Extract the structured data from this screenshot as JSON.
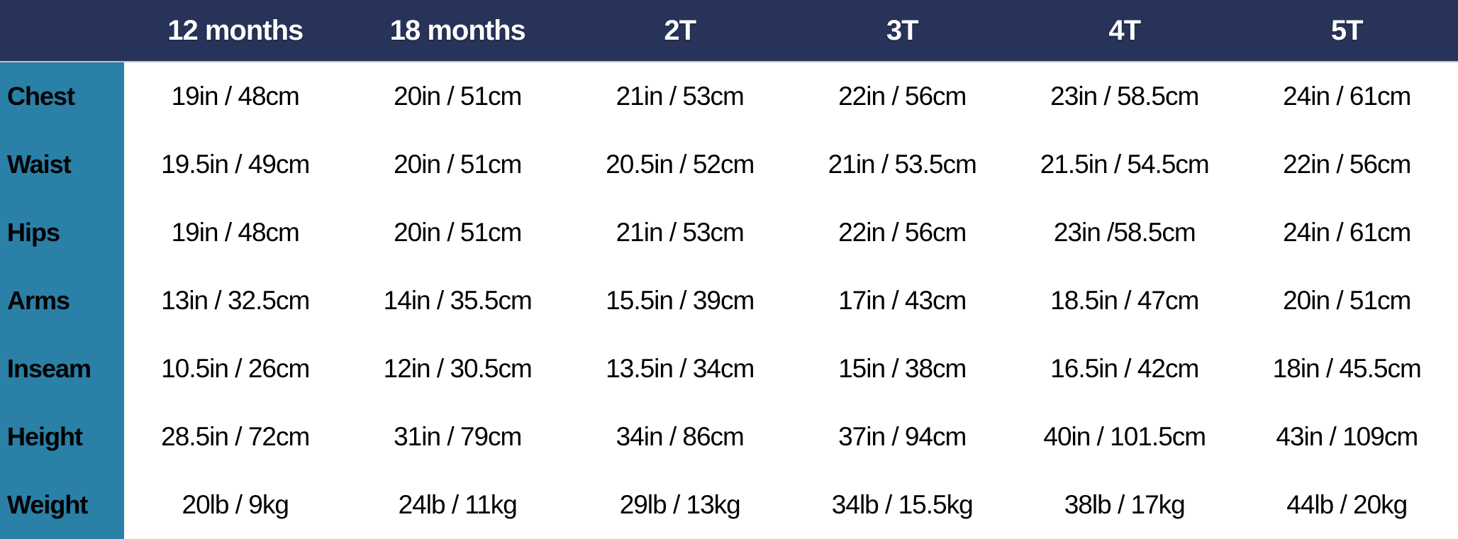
{
  "chart_data": {
    "type": "table",
    "columns": [
      "12 months",
      "18 months",
      "2T",
      "3T",
      "4T",
      "5T"
    ],
    "rows": [
      {
        "label": "Chest",
        "values": [
          "19in / 48cm",
          "20in / 51cm",
          "21in / 53cm",
          "22in / 56cm",
          "23in / 58.5cm",
          "24in / 61cm"
        ]
      },
      {
        "label": "Waist",
        "values": [
          "19.5in / 49cm",
          "20in / 51cm",
          "20.5in / 52cm",
          "21in / 53.5cm",
          "21.5in / 54.5cm",
          "22in / 56cm"
        ]
      },
      {
        "label": "Hips",
        "values": [
          "19in / 48cm",
          "20in / 51cm",
          "21in / 53cm",
          "22in / 56cm",
          "23in /58.5cm",
          "24in / 61cm"
        ]
      },
      {
        "label": "Arms",
        "values": [
          "13in / 32.5cm",
          "14in / 35.5cm",
          "15.5in / 39cm",
          "17in / 43cm",
          "18.5in / 47cm",
          "20in / 51cm"
        ]
      },
      {
        "label": "Inseam",
        "values": [
          "10.5in / 26cm",
          "12in / 30.5cm",
          "13.5in / 34cm",
          "15in / 38cm",
          "16.5in / 42cm",
          "18in / 45.5cm"
        ]
      },
      {
        "label": "Height",
        "values": [
          "28.5in / 72cm",
          "31in / 79cm",
          "34in / 86cm",
          "37in / 94cm",
          "40in / 101.5cm",
          "43in / 109cm"
        ]
      },
      {
        "label": "Weight",
        "values": [
          "20lb / 9kg",
          "24lb / 11kg",
          "29lb / 13kg",
          "34lb / 15.5kg",
          "38lb / 17kg",
          "44lb / 20kg"
        ]
      }
    ]
  },
  "colors": {
    "header_bg": "#273358",
    "header_text": "#ffffff",
    "label_bg": "#2a80a6",
    "body_bg": "#ffffff",
    "body_text": "#000000"
  }
}
